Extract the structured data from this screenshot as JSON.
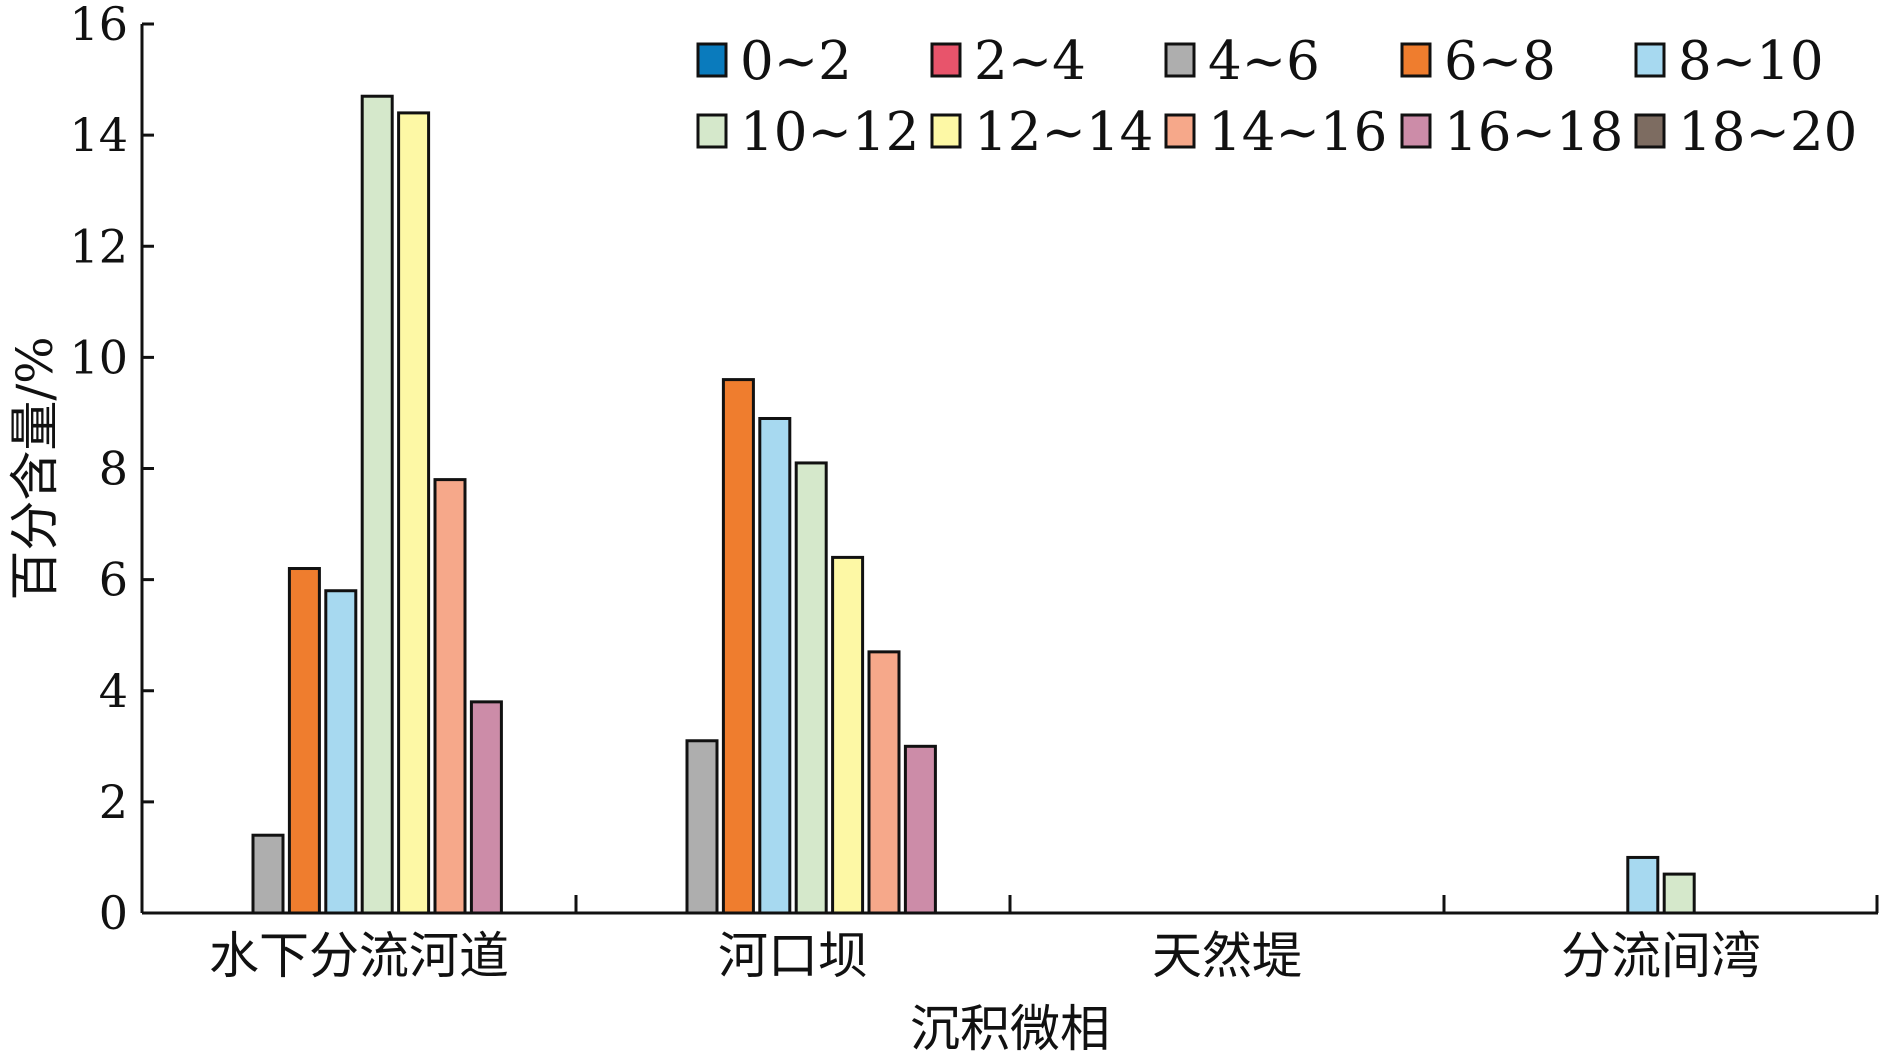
{
  "chart_data": {
    "type": "bar",
    "title": "",
    "xlabel": "沉积微相",
    "ylabel": "百分含量/%",
    "ylim": [
      0,
      16
    ],
    "yticks": [
      "0",
      "2",
      "4",
      "6",
      "8",
      "10",
      "12",
      "14",
      "16"
    ],
    "grid": false,
    "legend_position": "top-right",
    "categories": [
      "水下分流河道",
      "河口坝",
      "天然堤",
      "分流间湾"
    ],
    "series": [
      {
        "name": "0~2",
        "color": "#0a7bbd",
        "values": [
          0,
          0,
          0,
          0
        ]
      },
      {
        "name": "2~4",
        "color": "#e8546b",
        "values": [
          0,
          0,
          0,
          0
        ]
      },
      {
        "name": "4~6",
        "color": "#aeaeae",
        "values": [
          1.4,
          3.1,
          0,
          0
        ]
      },
      {
        "name": "6~8",
        "color": "#ef7d2e",
        "values": [
          6.2,
          9.6,
          0,
          0
        ]
      },
      {
        "name": "8~10",
        "color": "#a7d9f0",
        "values": [
          5.8,
          8.9,
          0,
          1.0
        ]
      },
      {
        "name": "10~12",
        "color": "#d5e8cb",
        "values": [
          14.7,
          8.1,
          0,
          0.7
        ]
      },
      {
        "name": "12~14",
        "color": "#fdf8a5",
        "values": [
          14.4,
          6.4,
          0,
          0
        ]
      },
      {
        "name": "14~16",
        "color": "#f6a88a",
        "values": [
          7.8,
          4.7,
          0,
          0
        ]
      },
      {
        "name": "16~18",
        "color": "#cc8ca8",
        "values": [
          3.8,
          3.0,
          0,
          0
        ]
      },
      {
        "name": "18~20",
        "color": "#7d6c61",
        "values": [
          0,
          0,
          0,
          0
        ]
      }
    ]
  }
}
